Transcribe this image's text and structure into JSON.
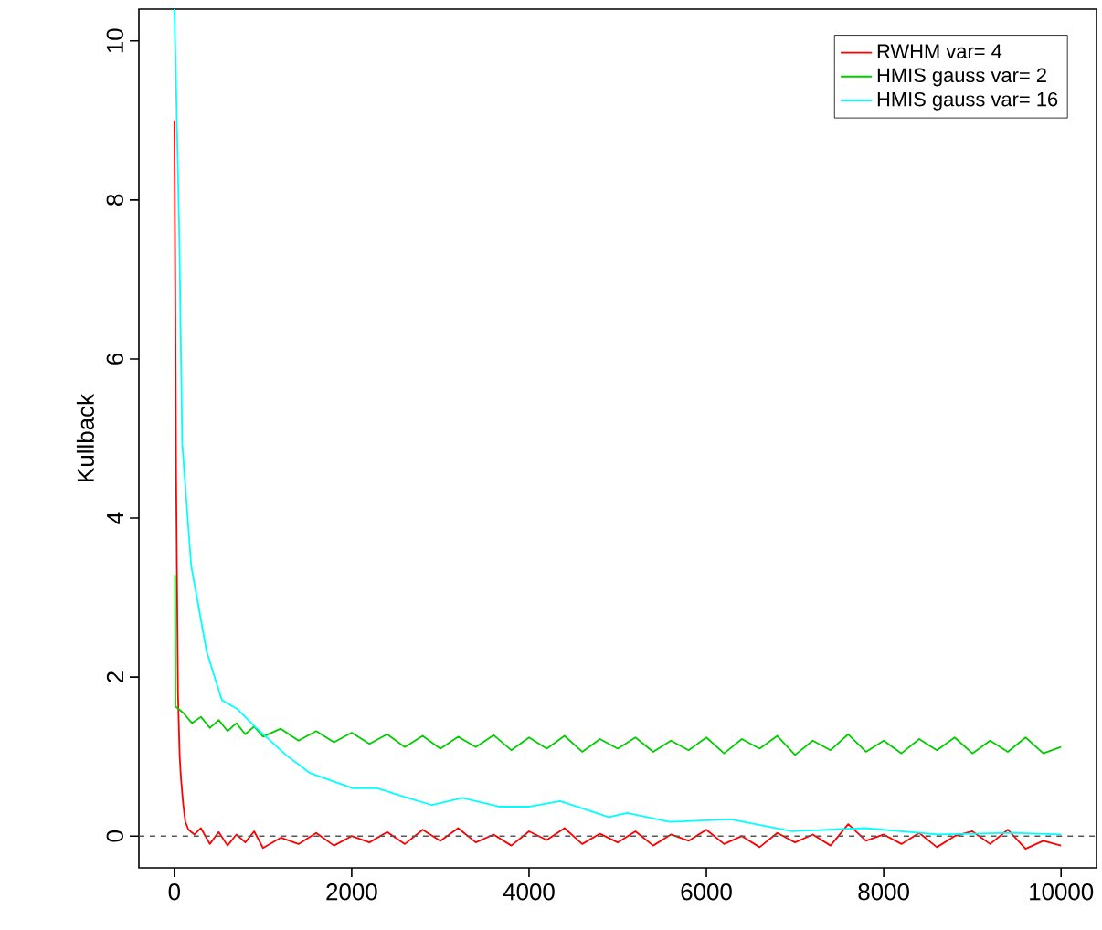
{
  "chart_data": {
    "type": "line",
    "ylabel": "Kullback",
    "xlim": [
      -400,
      10400
    ],
    "ylim": [
      -0.4,
      10.4
    ],
    "xticks": [
      0,
      2000,
      4000,
      6000,
      8000,
      10000
    ],
    "yticks": [
      0,
      2,
      4,
      6,
      8,
      10
    ],
    "legend": "top right",
    "grid": false,
    "line_style": "solid",
    "ref_lines": [
      {
        "axis": "y",
        "value": 0,
        "color": "#555555",
        "line_style": "dashed"
      }
    ],
    "series": [
      {
        "name": "RWHM var= 4",
        "color": "#ff0000",
        "x": [
          1,
          20,
          41,
          60,
          76,
          100,
          124,
          160,
          227,
          300,
          400,
          500,
          600,
          700,
          800,
          900,
          1000,
          1200,
          1400,
          1600,
          1800,
          2000,
          2200,
          2400,
          2600,
          2800,
          3000,
          3200,
          3400,
          3600,
          3800,
          4000,
          4200,
          4400,
          4600,
          4800,
          5000,
          5200,
          5400,
          5600,
          5800,
          6000,
          6200,
          6400,
          6600,
          6800,
          7000,
          7200,
          7400,
          7600,
          7800,
          8000,
          8200,
          8400,
          8600,
          8800,
          9000,
          9200,
          9400,
          9600,
          9800,
          10000
        ],
        "values": [
          9.0,
          4.5,
          1.79,
          1.0,
          0.71,
          0.4,
          0.18,
          0.08,
          0.02,
          0.1,
          -0.1,
          0.05,
          -0.12,
          0.02,
          -0.08,
          0.06,
          -0.15,
          -0.02,
          -0.1,
          0.04,
          -0.12,
          0.0,
          -0.08,
          0.05,
          -0.1,
          0.08,
          -0.06,
          0.1,
          -0.08,
          0.02,
          -0.12,
          0.06,
          -0.05,
          0.1,
          -0.1,
          0.03,
          -0.08,
          0.06,
          -0.12,
          0.02,
          -0.06,
          0.08,
          -0.1,
          0.0,
          -0.14,
          0.04,
          -0.08,
          0.02,
          -0.12,
          0.15,
          -0.06,
          0.02,
          -0.1,
          0.04,
          -0.14,
          0.0,
          0.06,
          -0.1,
          0.08,
          -0.16,
          -0.06,
          -0.12
        ]
      },
      {
        "name": "HMIS gauss var= 2",
        "color": "#00cd00",
        "x": [
          1,
          8,
          12,
          100,
          200,
          300,
          400,
          500,
          600,
          700,
          800,
          900,
          1000,
          1200,
          1400,
          1600,
          1800,
          2000,
          2200,
          2400,
          2600,
          2800,
          3000,
          3200,
          3400,
          3600,
          3800,
          4000,
          4200,
          4400,
          4600,
          4800,
          5000,
          5200,
          5400,
          5600,
          5800,
          6000,
          6200,
          6400,
          6600,
          6800,
          7000,
          7200,
          7400,
          7600,
          7800,
          8000,
          8200,
          8400,
          8600,
          8800,
          9000,
          9200,
          9400,
          9600,
          9800,
          10000
        ],
        "values": [
          3.28,
          3.28,
          1.63,
          1.55,
          1.42,
          1.5,
          1.36,
          1.46,
          1.32,
          1.42,
          1.28,
          1.38,
          1.25,
          1.35,
          1.2,
          1.32,
          1.18,
          1.3,
          1.16,
          1.28,
          1.12,
          1.26,
          1.1,
          1.25,
          1.12,
          1.27,
          1.08,
          1.24,
          1.1,
          1.26,
          1.06,
          1.22,
          1.1,
          1.24,
          1.06,
          1.2,
          1.08,
          1.24,
          1.04,
          1.22,
          1.1,
          1.26,
          1.02,
          1.2,
          1.08,
          1.28,
          1.06,
          1.2,
          1.04,
          1.22,
          1.08,
          1.24,
          1.04,
          1.2,
          1.06,
          1.24,
          1.04,
          1.12
        ]
      },
      {
        "name": "HMIS gauss var= 16",
        "color": "#00ffff",
        "x": [
          1,
          55,
          89,
          190,
          364,
          536,
          708,
          914,
          1258,
          1533,
          2014,
          2289,
          2632,
          2907,
          3251,
          3663,
          4007,
          4350,
          4900,
          5107,
          5589,
          6277,
          6964,
          7789,
          8613,
          9438,
          10000
        ],
        "values": [
          10.4,
          7.6,
          4.93,
          3.4,
          2.32,
          1.71,
          1.6,
          1.37,
          1.02,
          0.79,
          0.6,
          0.6,
          0.48,
          0.39,
          0.48,
          0.37,
          0.37,
          0.44,
          0.24,
          0.29,
          0.18,
          0.21,
          0.06,
          0.1,
          0.02,
          0.04,
          0.02
        ]
      }
    ]
  }
}
